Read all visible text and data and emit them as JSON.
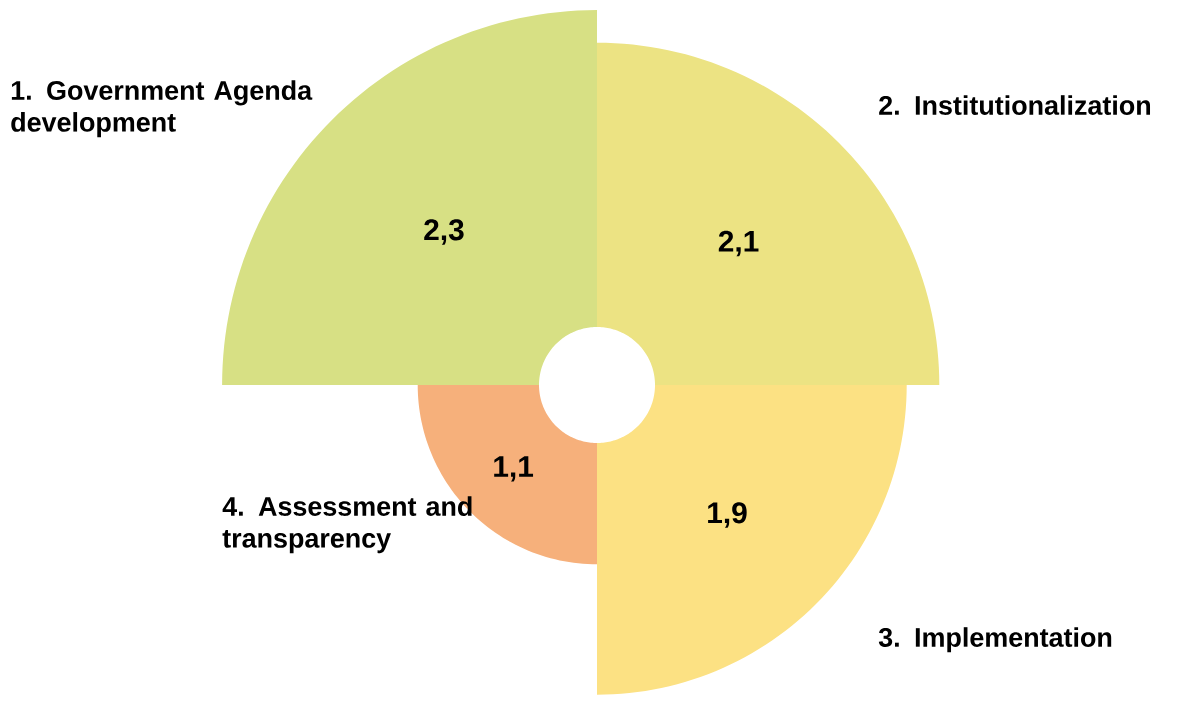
{
  "chart_data": {
    "type": "other",
    "categories": [
      "1. Government Agenda development",
      "2. Institutionalization",
      "3. Implementation",
      "4. Assessment and transparency"
    ],
    "values": [
      2.3,
      2.1,
      1.9,
      1.1
    ],
    "value_labels": [
      "2,3",
      "2,1",
      "1,9",
      "1,1"
    ],
    "colors": [
      "#d7e084",
      "#ece383",
      "#fce183",
      "#f6b07b"
    ]
  }
}
